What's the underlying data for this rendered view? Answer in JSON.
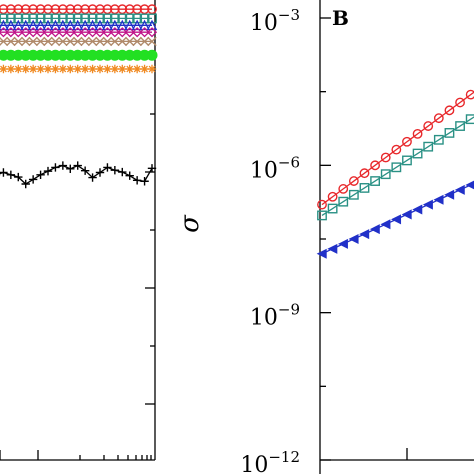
{
  "chart_data": [
    {
      "panel": "left (partially cropped)",
      "type": "line",
      "y_scale": "log",
      "x_scale": "log",
      "title": "",
      "xlabel": "",
      "ylabel": "",
      "series": [
        {
          "marker": "circle",
          "color": "#e8282b",
          "values": [
            0.98,
            0.98,
            0.98,
            0.98,
            0.98,
            0.98,
            0.98,
            0.98,
            0.98,
            0.98,
            0.98,
            0.98,
            0.98,
            0.98,
            0.98,
            0.98,
            0.98,
            0.98,
            0.98,
            0.98,
            0.98,
            0.98
          ]
        },
        {
          "marker": "square",
          "color": "#2a9185",
          "values": [
            0.96,
            0.96,
            0.96,
            0.96,
            0.96,
            0.96,
            0.96,
            0.96,
            0.96,
            0.96,
            0.96,
            0.96,
            0.96,
            0.96,
            0.96,
            0.96,
            0.96,
            0.96,
            0.96,
            0.96,
            0.96,
            0.96
          ]
        },
        {
          "marker": "triangle",
          "color": "#2130c8",
          "values": [
            0.945,
            0.945,
            0.945,
            0.945,
            0.945,
            0.945,
            0.945,
            0.945,
            0.945,
            0.945,
            0.945,
            0.945,
            0.945,
            0.945,
            0.945,
            0.945,
            0.945,
            0.945,
            0.945,
            0.945,
            0.945,
            0.945
          ]
        },
        {
          "marker": "diamond",
          "color": "#c0158a",
          "values": [
            0.93,
            0.93,
            0.93,
            0.93,
            0.93,
            0.93,
            0.93,
            0.93,
            0.93,
            0.93,
            0.93,
            0.93,
            0.93,
            0.93,
            0.93,
            0.93,
            0.93,
            0.93,
            0.93,
            0.93,
            0.93,
            0.93
          ]
        },
        {
          "marker": "x",
          "color": "#b08a6a",
          "values": [
            0.91,
            0.91,
            0.91,
            0.91,
            0.91,
            0.91,
            0.91,
            0.91,
            0.91,
            0.91,
            0.91,
            0.91,
            0.91,
            0.91,
            0.91,
            0.91,
            0.91,
            0.91,
            0.91,
            0.91,
            0.91,
            0.91
          ]
        },
        {
          "marker": "filled-circle",
          "color": "#22e022",
          "values": [
            0.88,
            0.88,
            0.88,
            0.88,
            0.88,
            0.88,
            0.88,
            0.88,
            0.88,
            0.88,
            0.88,
            0.88,
            0.88,
            0.88,
            0.88,
            0.88,
            0.88,
            0.88,
            0.88,
            0.88,
            0.88,
            0.88
          ]
        },
        {
          "marker": "star",
          "color": "#f08a22",
          "values": [
            0.85,
            0.85,
            0.85,
            0.85,
            0.85,
            0.85,
            0.85,
            0.85,
            0.85,
            0.85,
            0.85,
            0.85,
            0.85,
            0.85,
            0.85,
            0.85,
            0.85,
            0.85,
            0.85,
            0.85,
            0.85,
            0.85
          ]
        },
        {
          "marker": "plus",
          "color": "#000000",
          "values": [
            0.62,
            0.625,
            0.62,
            0.615,
            0.6,
            0.61,
            0.62,
            0.628,
            0.636,
            0.64,
            0.633,
            0.64,
            0.629,
            0.614,
            0.625,
            0.636,
            0.63,
            0.626,
            0.618,
            0.608,
            0.606,
            0.634
          ]
        }
      ]
    },
    {
      "panel": "B",
      "panel_label": "B",
      "type": "line",
      "x_scale": "log",
      "y_scale": "log",
      "title": "",
      "xlabel": "",
      "ylabel": "σ",
      "ylim": [
        1e-12,
        0.01
      ],
      "y_ticks": [
        {
          "value": -3,
          "label_base": "10",
          "label_exp": "−3"
        },
        {
          "value": -6,
          "label_base": "10",
          "label_exp": "−6"
        },
        {
          "value": -9,
          "label_base": "10",
          "label_exp": "−9"
        },
        {
          "value": -12,
          "label_base": "10",
          "label_exp": "−12"
        }
      ],
      "series": [
        {
          "marker": "circle",
          "color": "#e8282b",
          "log10_y": [
            -6.8,
            -6.72,
            -6.64,
            -6.56,
            -6.48,
            -6.4,
            -6.32,
            -6.24,
            -6.16,
            -6.08,
            -6.0,
            -5.92,
            -5.84,
            -5.76,
            -5.68,
            -5.6,
            -5.52,
            -5.44,
            -5.36,
            -5.28,
            -5.2,
            -5.12,
            -5.04,
            -4.96,
            -4.88,
            -4.8,
            -4.72,
            -4.64,
            -4.56,
            -4.48
          ]
        },
        {
          "marker": "square",
          "color": "#2a9185",
          "log10_y": [
            -7.02,
            -6.95,
            -6.88,
            -6.81,
            -6.74,
            -6.67,
            -6.6,
            -6.53,
            -6.46,
            -6.39,
            -6.32,
            -6.25,
            -6.18,
            -6.11,
            -6.04,
            -5.97,
            -5.9,
            -5.83,
            -5.76,
            -5.69,
            -5.62,
            -5.55,
            -5.48,
            -5.41,
            -5.34,
            -5.27,
            -5.2,
            -5.13,
            -5.06,
            -4.99
          ]
        },
        {
          "marker": "left-triangle",
          "color": "#2130c8",
          "log10_y": [
            -7.8,
            -7.75,
            -7.7,
            -7.65,
            -7.6,
            -7.55,
            -7.5,
            -7.45,
            -7.4,
            -7.35,
            -7.3,
            -7.25,
            -7.2,
            -7.15,
            -7.1,
            -7.05,
            -7.0,
            -6.95,
            -6.9,
            -6.85,
            -6.8,
            -6.75,
            -6.7,
            -6.65,
            -6.6,
            -6.55,
            -6.5,
            -6.45,
            -6.4,
            -6.35
          ]
        }
      ]
    }
  ],
  "panel_b": {
    "label": "B",
    "ylabel": "σ",
    "ticks": [
      {
        "base": "10",
        "exp": "−3"
      },
      {
        "base": "10",
        "exp": "−6"
      },
      {
        "base": "10",
        "exp": "−9"
      },
      {
        "base": "10",
        "exp": "−12"
      }
    ]
  }
}
